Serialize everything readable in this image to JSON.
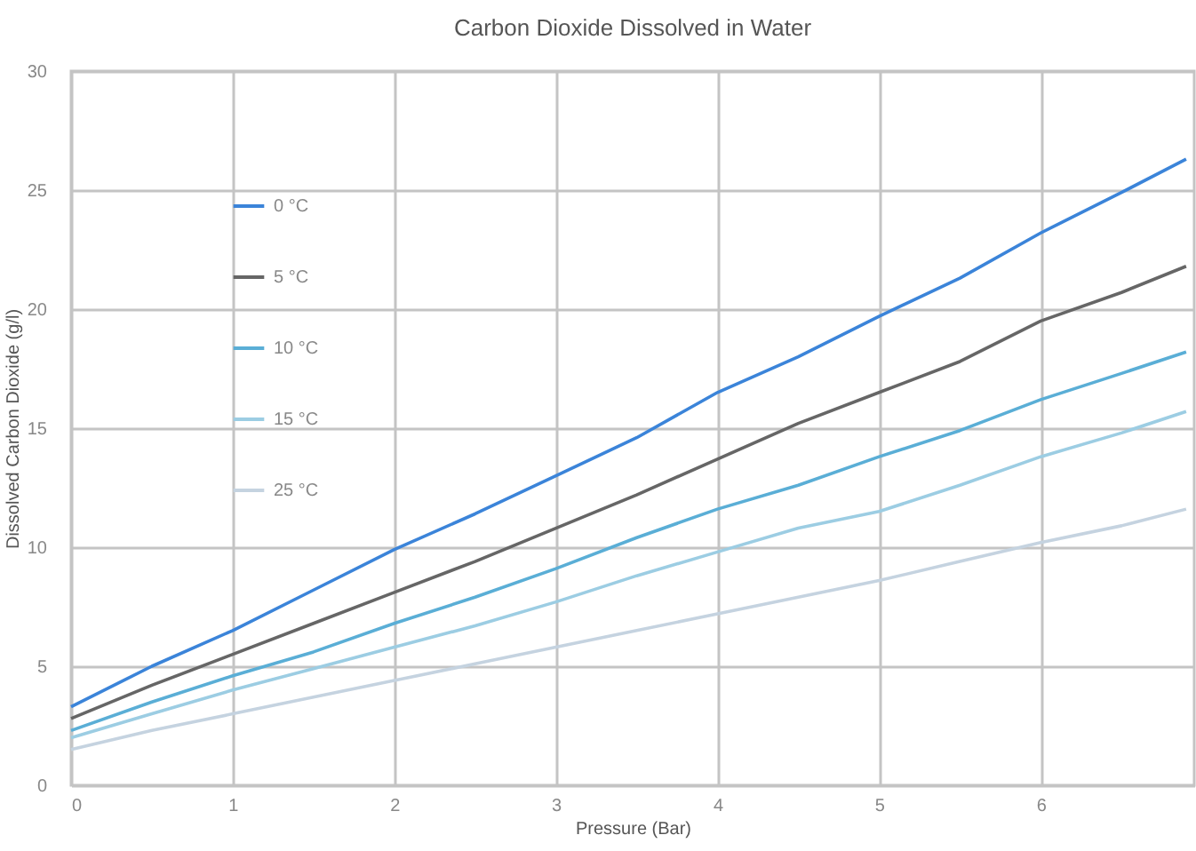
{
  "chart_data": {
    "type": "line",
    "title": "Carbon Dioxide Dissolved in Water",
    "xlabel": "Pressure (Bar)",
    "ylabel": "Dissolved Carbon Dioxide (g/l)",
    "x": [
      0,
      0.5,
      1,
      1.5,
      2,
      2.5,
      3,
      3.5,
      4,
      4.5,
      5,
      5.5,
      6,
      6.5,
      6.9
    ],
    "series": [
      {
        "name": "0 °C",
        "color": "#3b84d9",
        "values": [
          3.3,
          5.0,
          6.5,
          8.2,
          9.9,
          11.4,
          13.0,
          14.6,
          16.5,
          18.0,
          19.7,
          21.3,
          23.2,
          24.9,
          26.3
        ]
      },
      {
        "name": "5 °C",
        "color": "#666666",
        "values": [
          2.8,
          4.2,
          5.5,
          6.8,
          8.1,
          9.4,
          10.8,
          12.2,
          13.7,
          15.2,
          16.5,
          17.8,
          19.5,
          20.7,
          21.8
        ]
      },
      {
        "name": "10 °C",
        "color": "#5aaed6",
        "values": [
          2.3,
          3.5,
          4.6,
          5.6,
          6.8,
          7.9,
          9.1,
          10.4,
          11.6,
          12.6,
          13.8,
          14.9,
          16.2,
          17.3,
          18.2
        ]
      },
      {
        "name": "15 °C",
        "color": "#9ccde3",
        "values": [
          2.0,
          3.0,
          4.0,
          4.9,
          5.8,
          6.7,
          7.7,
          8.8,
          9.8,
          10.8,
          11.5,
          12.6,
          13.8,
          14.8,
          15.7
        ]
      },
      {
        "name": "25 °C",
        "color": "#c5d3e0",
        "values": [
          1.5,
          2.3,
          3.0,
          3.7,
          4.4,
          5.1,
          5.8,
          6.5,
          7.2,
          7.9,
          8.6,
          9.4,
          10.2,
          10.9,
          11.6
        ]
      }
    ],
    "xlim": [
      0,
      6.95
    ],
    "xticks": [
      0,
      1,
      2,
      3,
      4,
      5,
      6
    ],
    "ylim": [
      0,
      30
    ],
    "yticks": [
      0,
      5,
      10,
      15,
      20,
      25,
      30
    ],
    "grid": true,
    "legend": "top left",
    "marker": "none",
    "line_style": "solid"
  }
}
